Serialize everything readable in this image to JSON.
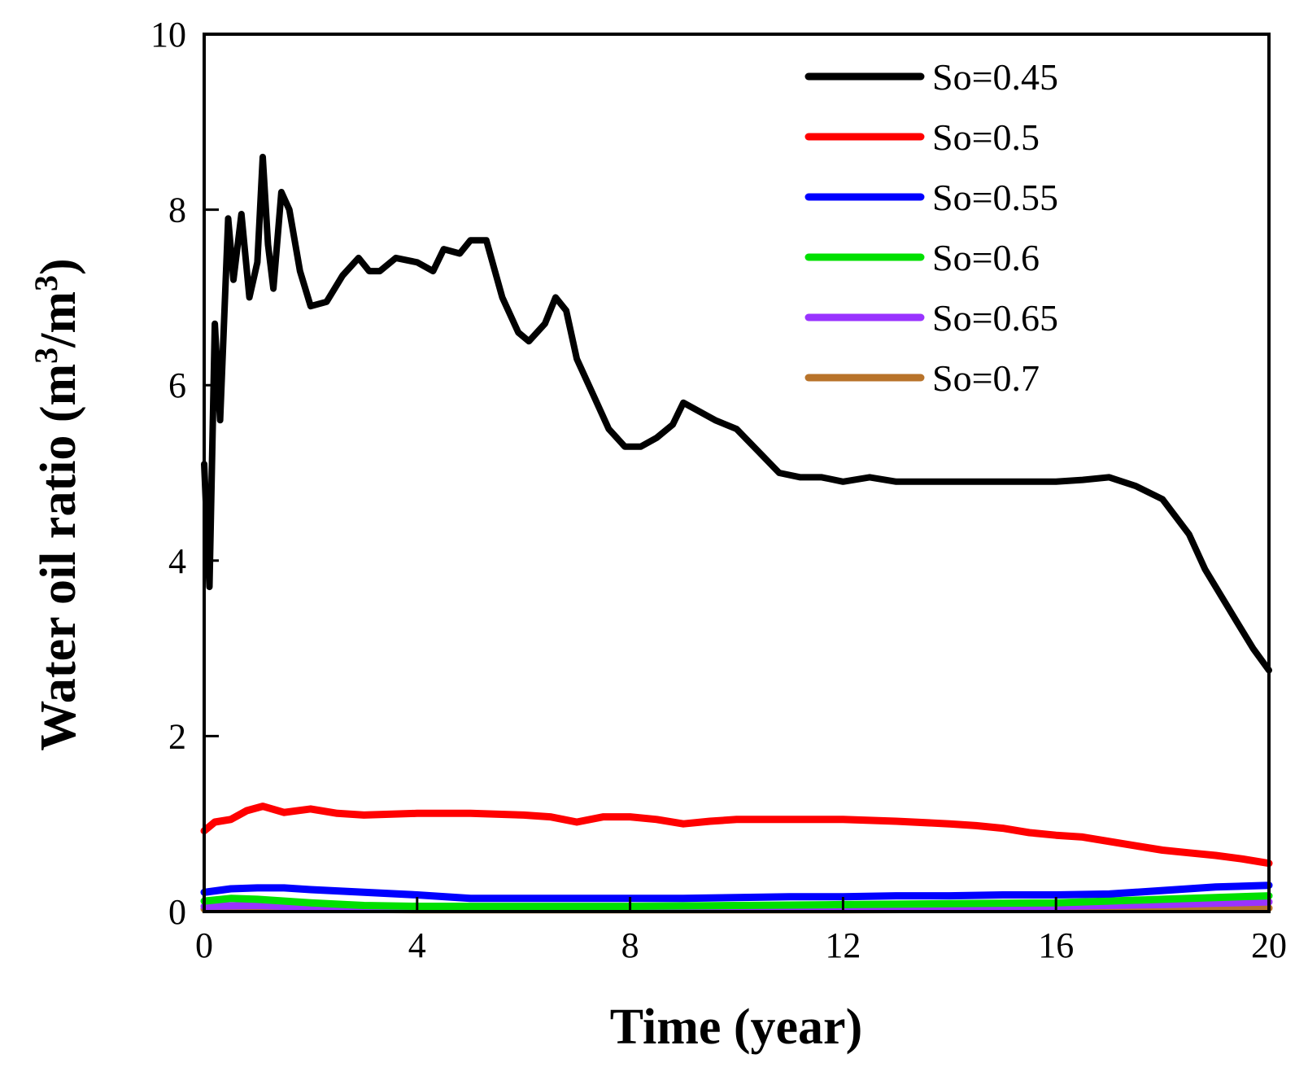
{
  "chart_data": {
    "type": "line",
    "title": "",
    "xlabel": "Time (year)",
    "ylabel": {
      "prefix": "Water oil ratio  (m",
      "sup1": "3",
      "mid": "/m",
      "sup2": "3",
      "suffix": ")"
    },
    "xlim": [
      0,
      20
    ],
    "ylim": [
      0,
      10
    ],
    "xticks": [
      0,
      4,
      8,
      12,
      16,
      20
    ],
    "xtick_labels": [
      "0",
      "4",
      "8",
      "12",
      "16",
      "20"
    ],
    "yticks": [
      0,
      2,
      4,
      6,
      8,
      10
    ],
    "ytick_labels": [
      "0",
      "2",
      "4",
      "6",
      "8",
      "10"
    ],
    "grid": false,
    "legend_position": "top-right",
    "series": [
      {
        "name": "So=0.45",
        "color": "#000000",
        "points": [
          [
            0,
            5.1
          ],
          [
            0.1,
            3.7
          ],
          [
            0.2,
            6.7
          ],
          [
            0.3,
            5.6
          ],
          [
            0.45,
            7.9
          ],
          [
            0.55,
            7.2
          ],
          [
            0.7,
            7.95
          ],
          [
            0.85,
            7.0
          ],
          [
            1.0,
            7.4
          ],
          [
            1.1,
            8.6
          ],
          [
            1.2,
            7.6
          ],
          [
            1.3,
            7.1
          ],
          [
            1.45,
            8.2
          ],
          [
            1.6,
            8.0
          ],
          [
            1.8,
            7.3
          ],
          [
            2.0,
            6.9
          ],
          [
            2.3,
            6.95
          ],
          [
            2.6,
            7.25
          ],
          [
            2.9,
            7.45
          ],
          [
            3.1,
            7.3
          ],
          [
            3.3,
            7.3
          ],
          [
            3.6,
            7.45
          ],
          [
            4.0,
            7.4
          ],
          [
            4.3,
            7.3
          ],
          [
            4.5,
            7.55
          ],
          [
            4.8,
            7.5
          ],
          [
            5.0,
            7.65
          ],
          [
            5.3,
            7.65
          ],
          [
            5.6,
            7.0
          ],
          [
            5.9,
            6.6
          ],
          [
            6.1,
            6.5
          ],
          [
            6.4,
            6.7
          ],
          [
            6.6,
            7.0
          ],
          [
            6.8,
            6.85
          ],
          [
            7.0,
            6.3
          ],
          [
            7.3,
            5.9
          ],
          [
            7.6,
            5.5
          ],
          [
            7.9,
            5.3
          ],
          [
            8.2,
            5.3
          ],
          [
            8.5,
            5.4
          ],
          [
            8.8,
            5.55
          ],
          [
            9.0,
            5.8
          ],
          [
            9.3,
            5.7
          ],
          [
            9.6,
            5.6
          ],
          [
            10.0,
            5.5
          ],
          [
            10.4,
            5.25
          ],
          [
            10.8,
            5.0
          ],
          [
            11.2,
            4.95
          ],
          [
            11.6,
            4.95
          ],
          [
            12.0,
            4.9
          ],
          [
            12.5,
            4.95
          ],
          [
            13.0,
            4.9
          ],
          [
            13.5,
            4.9
          ],
          [
            14.0,
            4.9
          ],
          [
            14.5,
            4.9
          ],
          [
            15.0,
            4.9
          ],
          [
            15.5,
            4.9
          ],
          [
            16.0,
            4.9
          ],
          [
            16.5,
            4.92
          ],
          [
            17.0,
            4.95
          ],
          [
            17.5,
            4.85
          ],
          [
            18.0,
            4.7
          ],
          [
            18.5,
            4.3
          ],
          [
            18.8,
            3.9
          ],
          [
            19.1,
            3.6
          ],
          [
            19.4,
            3.3
          ],
          [
            19.7,
            3.0
          ],
          [
            20.0,
            2.75
          ]
        ]
      },
      {
        "name": "So=0.5",
        "color": "#ff0000",
        "points": [
          [
            0,
            0.92
          ],
          [
            0.2,
            1.02
          ],
          [
            0.5,
            1.05
          ],
          [
            0.8,
            1.15
          ],
          [
            1.1,
            1.2
          ],
          [
            1.5,
            1.13
          ],
          [
            2.0,
            1.17
          ],
          [
            2.5,
            1.12
          ],
          [
            3.0,
            1.1
          ],
          [
            4.0,
            1.12
          ],
          [
            5.0,
            1.12
          ],
          [
            6.0,
            1.1
          ],
          [
            6.5,
            1.08
          ],
          [
            7.0,
            1.02
          ],
          [
            7.5,
            1.08
          ],
          [
            8.0,
            1.08
          ],
          [
            8.5,
            1.05
          ],
          [
            9.0,
            1.0
          ],
          [
            9.5,
            1.03
          ],
          [
            10.0,
            1.05
          ],
          [
            11.0,
            1.05
          ],
          [
            12.0,
            1.05
          ],
          [
            13.0,
            1.03
          ],
          [
            14.0,
            1.0
          ],
          [
            14.5,
            0.98
          ],
          [
            15.0,
            0.95
          ],
          [
            15.5,
            0.9
          ],
          [
            16.0,
            0.87
          ],
          [
            16.5,
            0.85
          ],
          [
            17.0,
            0.8
          ],
          [
            17.5,
            0.75
          ],
          [
            18.0,
            0.7
          ],
          [
            18.5,
            0.67
          ],
          [
            19.0,
            0.64
          ],
          [
            19.5,
            0.6
          ],
          [
            20.0,
            0.55
          ]
        ]
      },
      {
        "name": "So=0.55",
        "color": "#0000ff",
        "points": [
          [
            0,
            0.22
          ],
          [
            0.5,
            0.26
          ],
          [
            1.0,
            0.27
          ],
          [
            1.5,
            0.27
          ],
          [
            2.0,
            0.25
          ],
          [
            3.0,
            0.22
          ],
          [
            4.0,
            0.19
          ],
          [
            5.0,
            0.15
          ],
          [
            6.0,
            0.15
          ],
          [
            7.0,
            0.15
          ],
          [
            8.0,
            0.15
          ],
          [
            9.0,
            0.15
          ],
          [
            10.0,
            0.16
          ],
          [
            11.0,
            0.17
          ],
          [
            12.0,
            0.17
          ],
          [
            13.0,
            0.18
          ],
          [
            14.0,
            0.18
          ],
          [
            15.0,
            0.19
          ],
          [
            16.0,
            0.19
          ],
          [
            17.0,
            0.2
          ],
          [
            18.0,
            0.24
          ],
          [
            19.0,
            0.28
          ],
          [
            20.0,
            0.3
          ]
        ]
      },
      {
        "name": "So=0.6",
        "color": "#00e000",
        "points": [
          [
            0,
            0.12
          ],
          [
            0.5,
            0.15
          ],
          [
            1.0,
            0.14
          ],
          [
            2.0,
            0.1
          ],
          [
            3.0,
            0.07
          ],
          [
            4.0,
            0.06
          ],
          [
            6.0,
            0.06
          ],
          [
            8.0,
            0.06
          ],
          [
            10.0,
            0.07
          ],
          [
            12.0,
            0.08
          ],
          [
            14.0,
            0.09
          ],
          [
            16.0,
            0.1
          ],
          [
            18.0,
            0.14
          ],
          [
            20.0,
            0.18
          ]
        ]
      },
      {
        "name": "So=0.65",
        "color": "#9933ff",
        "points": [
          [
            0,
            0.06
          ],
          [
            1.0,
            0.07
          ],
          [
            2.0,
            0.05
          ],
          [
            4.0,
            0.04
          ],
          [
            8.0,
            0.04
          ],
          [
            12.0,
            0.05
          ],
          [
            16.0,
            0.06
          ],
          [
            18.0,
            0.08
          ],
          [
            20.0,
            0.11
          ]
        ]
      },
      {
        "name": "So=0.7",
        "color": "#b8732a",
        "points": [
          [
            0,
            0.03
          ],
          [
            2.0,
            0.03
          ],
          [
            4.0,
            0.02
          ],
          [
            8.0,
            0.02
          ],
          [
            12.0,
            0.02
          ],
          [
            16.0,
            0.03
          ],
          [
            20.0,
            0.04
          ]
        ]
      }
    ]
  }
}
